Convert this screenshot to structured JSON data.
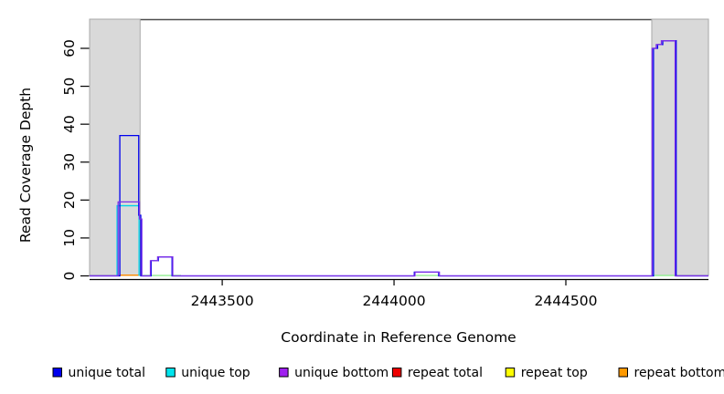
{
  "chart_data": {
    "type": "line",
    "subtype": "step-coverage-plot",
    "title": "",
    "xlabel": "Coordinate in Reference Genome",
    "ylabel": "Read Coverage Depth",
    "xlim": [
      2443114,
      2444915
    ],
    "ylim": [
      0,
      67
    ],
    "xticks": [
      2443500,
      2444000,
      2444500
    ],
    "yticks": [
      0,
      10,
      20,
      30,
      40,
      50,
      60
    ],
    "grid": false,
    "background": "#ffffff",
    "plot_top_border_color": "#4d4d4d",
    "shaded_regions": {
      "color": "#d9d9d9",
      "border_color": "#a8a8a8",
      "regions": [
        {
          "x0": 2443114,
          "x1": 2443261
        },
        {
          "x0": 2444750,
          "x1": 2444915
        }
      ]
    },
    "series": [
      {
        "name": "unique total",
        "color": "#0000EE",
        "points": [
          [
            2443114,
            0
          ],
          [
            2443202,
            0
          ],
          [
            2443202,
            37
          ],
          [
            2443257,
            37
          ],
          [
            2443257,
            16
          ],
          [
            2443263,
            16
          ],
          [
            2443263,
            0
          ],
          [
            2443293,
            0
          ],
          [
            2443293,
            4
          ],
          [
            2443314,
            4
          ],
          [
            2443314,
            5
          ],
          [
            2443354,
            5
          ],
          [
            2443354,
            0
          ],
          [
            2444059,
            0
          ],
          [
            2444059,
            1
          ],
          [
            2444130,
            1
          ],
          [
            2444130,
            0
          ],
          [
            2444755,
            0
          ],
          [
            2444755,
            60
          ],
          [
            2444767,
            60
          ],
          [
            2444767,
            61
          ],
          [
            2444782,
            61
          ],
          [
            2444782,
            62
          ],
          [
            2444821,
            62
          ],
          [
            2444821,
            0
          ],
          [
            2444915,
            0
          ]
        ]
      },
      {
        "name": "unique top",
        "color": "#00D5E8",
        "points": [
          [
            2443194,
            0
          ],
          [
            2443194,
            18.5
          ],
          [
            2443258,
            18.5
          ],
          [
            2443258,
            0
          ]
        ]
      },
      {
        "name": "unique bottom",
        "color": "#7B2FE8",
        "points": [
          [
            2443114,
            0
          ],
          [
            2443197,
            0
          ],
          [
            2443197,
            19.5
          ],
          [
            2443259,
            19.5
          ],
          [
            2443259,
            15
          ],
          [
            2443266,
            15
          ],
          [
            2443266,
            0
          ],
          [
            2443291,
            0
          ],
          [
            2443291,
            4
          ],
          [
            2443312,
            4
          ],
          [
            2443312,
            5
          ],
          [
            2443356,
            5
          ],
          [
            2443356,
            0
          ],
          [
            2444061,
            0
          ],
          [
            2444061,
            1
          ],
          [
            2444132,
            1
          ],
          [
            2444132,
            0
          ],
          [
            2444751,
            0
          ],
          [
            2444751,
            60
          ],
          [
            2444763,
            60
          ],
          [
            2444763,
            61
          ],
          [
            2444778,
            61
          ],
          [
            2444778,
            62
          ],
          [
            2444818,
            62
          ],
          [
            2444818,
            0
          ],
          [
            2444915,
            0
          ]
        ]
      },
      {
        "name": "repeat total",
        "color": "#EE0000",
        "points": []
      },
      {
        "name": "repeat top",
        "color": "#FFFF00",
        "points": []
      },
      {
        "name": "repeat bottom",
        "color": "#FF8C00",
        "points": [
          [
            2443202,
            0.2
          ],
          [
            2443258,
            0.2
          ]
        ]
      }
    ],
    "baseline_overlap_segments": {
      "color": "#90EE90",
      "depth": 0.1,
      "segments": [
        {
          "x0": 2443269,
          "x1": 2443380
        },
        {
          "x0": 2444064,
          "x1": 2444130
        },
        {
          "x0": 2444753,
          "x1": 2444819
        }
      ]
    },
    "legend": {
      "position": "bottom",
      "items": [
        {
          "label": "unique total",
          "color": "#0000EE"
        },
        {
          "label": "unique top",
          "color": "#00E5EE"
        },
        {
          "label": "unique bottom",
          "color": "#A020F0"
        },
        {
          "label": "repeat total",
          "color": "#EE0000"
        },
        {
          "label": "repeat top",
          "color": "#FFFF00"
        },
        {
          "label": "repeat bottom",
          "color": "#FF9900"
        }
      ]
    }
  }
}
